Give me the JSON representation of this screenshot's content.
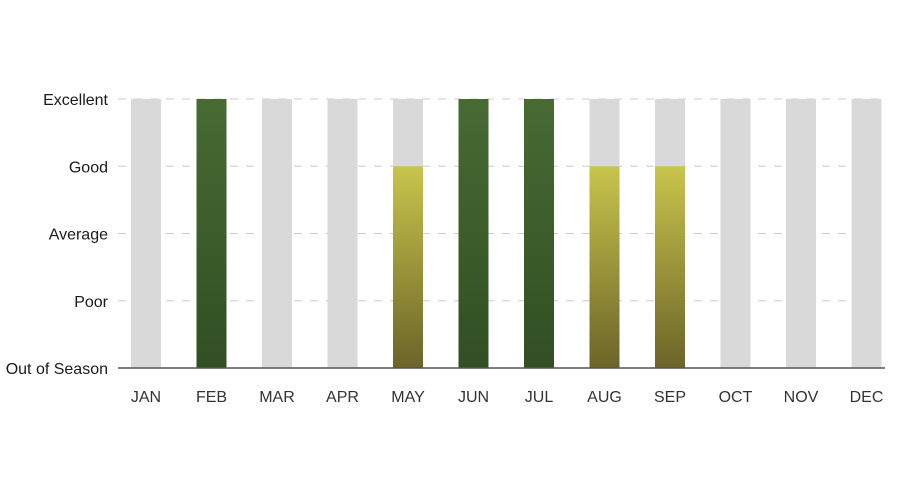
{
  "chart_data": {
    "type": "bar",
    "categories": [
      "JAN",
      "FEB",
      "MAR",
      "APR",
      "MAY",
      "JUN",
      "JUL",
      "AUG",
      "SEP",
      "OCT",
      "NOV",
      "DEC"
    ],
    "y_levels": [
      "Out of Season",
      "Poor",
      "Average",
      "Good",
      "Excellent"
    ],
    "values": [
      0,
      4,
      0,
      0,
      3,
      4,
      4,
      3,
      3,
      0,
      0,
      0
    ],
    "ylim": [
      0,
      4
    ],
    "grid": true,
    "colors": {
      "track": "#d9d9d9",
      "excellent_top": "#486a33",
      "excellent_bottom": "#314f23",
      "good_top": "#c8c54c",
      "good_bottom": "#6b6428",
      "grid": "#cccccc",
      "axis": "#555555"
    }
  }
}
